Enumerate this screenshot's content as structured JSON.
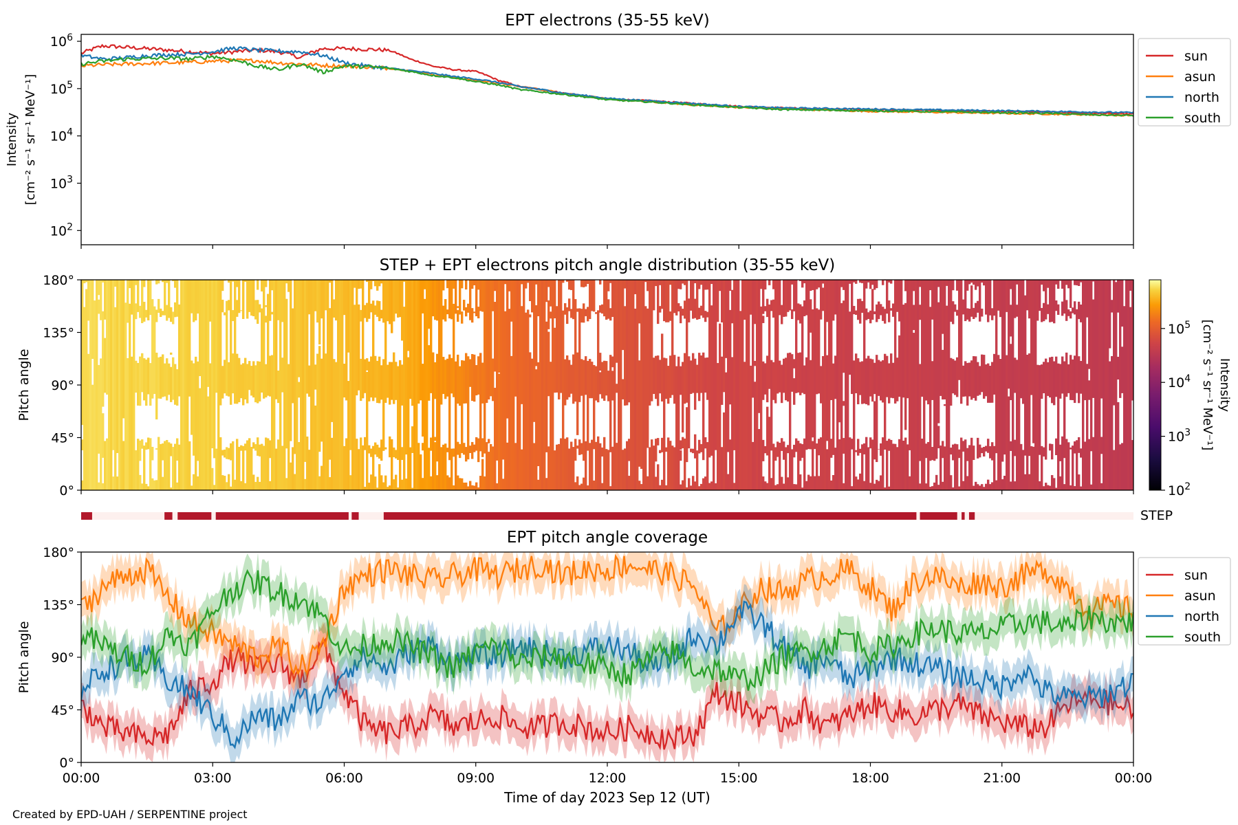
{
  "credit": "Created by EPD-UAH / SERPENTINE project",
  "colors": {
    "sun": "#d62728",
    "asun": "#ff7f0e",
    "north": "#1f77b4",
    "south": "#2ca02c",
    "step_bar": "#b2182b",
    "step_gap": "#fdf0ee"
  },
  "chart_data": [
    {
      "type": "line",
      "title": "EPT electrons (35-55 keV)",
      "ylabel_line1": "Intensity",
      "ylabel_line2": "[cm⁻² s⁻¹ sr⁻¹ MeV⁻¹]",
      "yscale": "log",
      "ylim": [
        50,
        1400000
      ],
      "yticks": [
        {
          "v": 100,
          "b": "10",
          "e": "2"
        },
        {
          "v": 1000,
          "b": "10",
          "e": "3"
        },
        {
          "v": 10000,
          "b": "10",
          "e": "4"
        },
        {
          "v": 100000,
          "b": "10",
          "e": "5"
        },
        {
          "v": 1000000,
          "b": "10",
          "e": "6"
        }
      ],
      "xlim_hours": [
        0,
        24
      ],
      "legend_position": "outside-right-top",
      "series": [
        {
          "name": "sun",
          "color": "#d62728",
          "x_hours": [
            0,
            0.5,
            1,
            1.5,
            2,
            2.5,
            3,
            3.5,
            4,
            4.5,
            5,
            5.5,
            6,
            6.5,
            7,
            7.5,
            8,
            8.5,
            9,
            9.5,
            10,
            11,
            12,
            13,
            14,
            15,
            16,
            17,
            18,
            19,
            20,
            21,
            22,
            23,
            24
          ],
          "values": [
            550000,
            800000,
            750000,
            700000,
            650000,
            600000,
            550000,
            600000,
            650000,
            600000,
            450000,
            700000,
            700000,
            680000,
            650000,
            420000,
            300000,
            250000,
            230000,
            150000,
            110000,
            80000,
            60000,
            55000,
            48000,
            42000,
            39000,
            37000,
            36000,
            35000,
            34000,
            33000,
            32000,
            30000,
            29000
          ]
        },
        {
          "name": "asun",
          "color": "#ff7f0e",
          "x_hours": [
            0,
            0.5,
            1,
            1.5,
            2,
            2.5,
            3,
            3.5,
            4,
            4.5,
            5,
            5.5,
            6,
            6.5,
            7,
            7.5,
            8,
            8.5,
            9,
            9.5,
            10,
            11,
            12,
            13,
            14,
            15,
            16,
            17,
            18,
            19,
            20,
            21,
            22,
            23,
            24
          ],
          "values": [
            300000,
            320000,
            330000,
            340000,
            350000,
            360000,
            380000,
            390000,
            390000,
            350000,
            330000,
            310000,
            300000,
            290000,
            270000,
            240000,
            200000,
            170000,
            150000,
            130000,
            110000,
            80000,
            60000,
            52000,
            45000,
            40000,
            37000,
            35000,
            33000,
            32000,
            31000,
            30000,
            29000,
            28000,
            27000
          ]
        },
        {
          "name": "north",
          "color": "#1f77b4",
          "x_hours": [
            0,
            0.5,
            1,
            1.5,
            2,
            2.5,
            3,
            3.5,
            4,
            4.5,
            5,
            5.5,
            6,
            6.5,
            7,
            7.5,
            8,
            8.5,
            9,
            9.5,
            10,
            11,
            12,
            13,
            14,
            15,
            16,
            17,
            18,
            19,
            20,
            21,
            22,
            23,
            24
          ],
          "values": [
            500000,
            420000,
            450000,
            500000,
            520000,
            540000,
            600000,
            720000,
            650000,
            620000,
            600000,
            500000,
            350000,
            300000,
            270000,
            240000,
            210000,
            180000,
            160000,
            135000,
            110000,
            80000,
            62000,
            55000,
            48000,
            42000,
            39000,
            38000,
            37000,
            36000,
            35000,
            34000,
            33000,
            32000,
            31000
          ]
        },
        {
          "name": "south",
          "color": "#2ca02c",
          "x_hours": [
            0,
            0.5,
            1,
            1.5,
            2,
            2.5,
            3,
            3.5,
            4,
            4.5,
            5,
            5.5,
            6,
            6.5,
            7,
            7.5,
            8,
            8.5,
            9,
            9.5,
            10,
            11,
            12,
            13,
            14,
            15,
            16,
            17,
            18,
            19,
            20,
            21,
            22,
            23,
            24
          ],
          "values": [
            330000,
            380000,
            420000,
            430000,
            440000,
            420000,
            480000,
            400000,
            300000,
            250000,
            330000,
            220000,
            300000,
            290000,
            270000,
            230000,
            190000,
            170000,
            140000,
            120000,
            95000,
            75000,
            58000,
            52000,
            45000,
            40000,
            36000,
            35000,
            34000,
            33000,
            32000,
            31000,
            30000,
            28000,
            27000
          ]
        }
      ]
    },
    {
      "type": "heatmap",
      "title": "STEP + EPT electrons pitch angle distribution (35-55 keV)",
      "ylabel": "Pitch angle",
      "ylim": [
        0,
        180
      ],
      "yticks": [
        "0°",
        "45°",
        "90°",
        "135°",
        "180°"
      ],
      "colorbar": {
        "scale": "log",
        "range": [
          100,
          800000
        ],
        "colormap": "inferno",
        "label_line1": "Intensity",
        "label_line2": "[cm⁻² s⁻¹ sr⁻¹ MeV⁻¹]",
        "ticks": [
          {
            "v": 100,
            "b": "10",
            "e": "2"
          },
          {
            "v": 1000,
            "b": "10",
            "e": "3"
          },
          {
            "v": 10000,
            "b": "10",
            "e": "4"
          },
          {
            "v": 100000,
            "b": "10",
            "e": "5"
          }
        ]
      },
      "intensity_x_hours": [
        0,
        3,
        6,
        7.5,
        8,
        9,
        10,
        12,
        14,
        16,
        18,
        24
      ],
      "intensity_values": [
        550000,
        500000,
        400000,
        320000,
        250000,
        170000,
        120000,
        80000,
        60000,
        50000,
        45000,
        35000
      ],
      "gap_bands_deg": [
        [
          112,
          148
        ],
        [
          40,
          78
        ],
        [
          8,
          30
        ],
        [
          158,
          176
        ]
      ],
      "gap_windows_hours": [
        [
          1.2,
          2.2
        ],
        [
          3.2,
          4.3
        ],
        [
          6.3,
          7.2
        ],
        [
          8.2,
          9.1
        ],
        [
          11.0,
          12.1
        ],
        [
          13.0,
          14.3
        ],
        [
          15.5,
          16.5
        ],
        [
          17.5,
          18.5
        ],
        [
          19.8,
          20.8
        ],
        [
          21.8,
          22.8
        ]
      ]
    },
    {
      "type": "timeline",
      "label": "STEP",
      "xlim_hours": [
        0,
        24
      ],
      "segments_hours": [
        [
          0.0,
          0.25
        ],
        [
          1.9,
          2.08
        ],
        [
          2.2,
          2.97
        ],
        [
          3.07,
          6.1
        ],
        [
          6.17,
          6.33
        ],
        [
          6.9,
          19.05
        ],
        [
          19.13,
          19.98
        ],
        [
          20.08,
          20.15
        ],
        [
          20.25,
          20.38
        ]
      ]
    },
    {
      "type": "line",
      "title": "EPT pitch angle coverage",
      "ylabel": "Pitch angle",
      "xlabel": "Time of day 2023 Sep 12 (UT)",
      "ylim": [
        0,
        180
      ],
      "yticks": [
        "0°",
        "45°",
        "90°",
        "135°",
        "180°"
      ],
      "xticks": [
        "00:00",
        "03:00",
        "06:00",
        "09:00",
        "12:00",
        "15:00",
        "18:00",
        "21:00",
        "00:00"
      ],
      "band_halfwidth_deg": 15,
      "legend_position": "outside-right-top",
      "series": [
        {
          "name": "sun",
          "color": "#d62728",
          "x_hours": [
            0,
            0.5,
            1,
            1.5,
            2,
            2.5,
            3,
            3.5,
            4,
            4.5,
            5,
            5.5,
            6,
            6.5,
            7,
            7.5,
            8,
            8.5,
            9,
            9.5,
            10,
            10.5,
            11,
            11.5,
            12,
            12.5,
            13,
            13.5,
            14,
            14.5,
            15,
            15.5,
            16,
            16.5,
            17,
            17.5,
            18,
            18.5,
            19,
            19.5,
            20,
            20.5,
            21,
            21.5,
            22,
            22.5,
            23,
            23.5,
            24
          ],
          "values": [
            50,
            30,
            25,
            20,
            25,
            60,
            70,
            90,
            80,
            85,
            70,
            100,
            60,
            30,
            25,
            30,
            40,
            30,
            35,
            40,
            30,
            30,
            35,
            30,
            25,
            30,
            25,
            20,
            25,
            60,
            50,
            40,
            35,
            45,
            30,
            40,
            50,
            45,
            40,
            45,
            50,
            40,
            35,
            30,
            30,
            50,
            55,
            50,
            45
          ]
        },
        {
          "name": "asun",
          "color": "#ff7f0e",
          "x_hours": [
            0,
            0.5,
            1,
            1.5,
            2,
            2.5,
            3,
            3.5,
            4,
            4.5,
            5,
            5.5,
            6,
            6.5,
            7,
            7.5,
            8,
            8.5,
            9,
            9.5,
            10,
            10.5,
            11,
            11.5,
            12,
            12.5,
            13,
            13.5,
            14,
            14.5,
            15,
            15.5,
            16,
            16.5,
            17,
            17.5,
            18,
            18.5,
            19,
            19.5,
            20,
            20.5,
            21,
            21.5,
            22,
            22.5,
            23,
            23.5,
            24
          ],
          "values": [
            130,
            150,
            160,
            165,
            140,
            120,
            110,
            100,
            90,
            100,
            80,
            100,
            150,
            160,
            165,
            160,
            155,
            160,
            165,
            160,
            165,
            170,
            160,
            165,
            165,
            170,
            165,
            160,
            150,
            110,
            130,
            150,
            145,
            155,
            160,
            165,
            150,
            130,
            155,
            160,
            150,
            155,
            150,
            160,
            165,
            150,
            130,
            135,
            130
          ]
        },
        {
          "name": "north",
          "color": "#1f77b4",
          "x_hours": [
            0,
            0.5,
            1,
            1.5,
            2,
            2.5,
            3,
            3.5,
            4,
            4.5,
            5,
            5.5,
            6,
            6.5,
            7,
            7.5,
            8,
            8.5,
            9,
            9.5,
            10,
            10.5,
            11,
            11.5,
            12,
            12.5,
            13,
            13.5,
            14,
            14.5,
            15,
            15.5,
            16,
            16.5,
            17,
            17.5,
            18,
            18.5,
            19,
            19.5,
            20,
            20.5,
            21,
            21.5,
            22,
            22.5,
            23,
            23.5,
            24
          ],
          "values": [
            60,
            80,
            85,
            90,
            70,
            60,
            40,
            20,
            40,
            35,
            55,
            50,
            80,
            90,
            80,
            95,
            100,
            85,
            90,
            90,
            100,
            95,
            90,
            95,
            100,
            95,
            80,
            90,
            110,
            100,
            130,
            120,
            100,
            80,
            90,
            70,
            80,
            90,
            85,
            80,
            75,
            70,
            65,
            80,
            60,
            55,
            55,
            60,
            70
          ]
        },
        {
          "name": "south",
          "color": "#2ca02c",
          "x_hours": [
            0,
            0.5,
            1,
            1.5,
            2,
            2.5,
            3,
            3.5,
            4,
            4.5,
            5,
            5.5,
            6,
            6.5,
            7,
            7.5,
            8,
            8.5,
            9,
            9.5,
            10,
            10.5,
            11,
            11.5,
            12,
            12.5,
            13,
            13.5,
            14,
            14.5,
            15,
            15.5,
            16,
            16.5,
            17,
            17.5,
            18,
            18.5,
            19,
            19.5,
            20,
            20.5,
            21,
            21.5,
            22,
            22.5,
            23,
            23.5,
            24
          ],
          "values": [
            110,
            100,
            90,
            85,
            110,
            100,
            130,
            150,
            155,
            145,
            140,
            125,
            95,
            100,
            105,
            100,
            90,
            80,
            95,
            100,
            85,
            90,
            90,
            85,
            80,
            75,
            90,
            95,
            80,
            80,
            70,
            75,
            90,
            95,
            100,
            110,
            95,
            100,
            110,
            115,
            110,
            110,
            115,
            120,
            120,
            115,
            125,
            120,
            120
          ]
        }
      ]
    }
  ]
}
